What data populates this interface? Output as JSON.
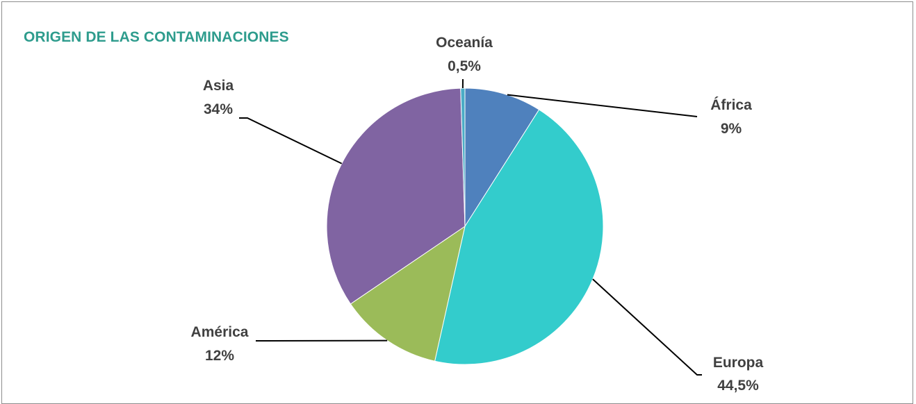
{
  "chart_data": {
    "type": "pie",
    "title": "ORIGEN DE LAS CONTAMINACIONES",
    "slices": [
      {
        "label": "África",
        "value": 9,
        "value_label": "9%",
        "color": "#4f81bd"
      },
      {
        "label": "Europa",
        "value": 44.5,
        "value_label": "44,5%",
        "color": "#33cccc"
      },
      {
        "label": "América",
        "value": 12,
        "value_label": "12%",
        "color": "#9bbb59"
      },
      {
        "label": "Asia",
        "value": 34,
        "value_label": "34%",
        "color": "#8064a2"
      },
      {
        "label": "Oceanía",
        "value": 0.5,
        "value_label": "0,5%",
        "color": "#4bacc6"
      }
    ],
    "start_angle_deg": 0,
    "direction": "clockwise",
    "colors": {
      "title": "#2e9c8d",
      "labels": "#404040",
      "leader_lines": "#000000",
      "slice_border": "#ffffff"
    }
  }
}
